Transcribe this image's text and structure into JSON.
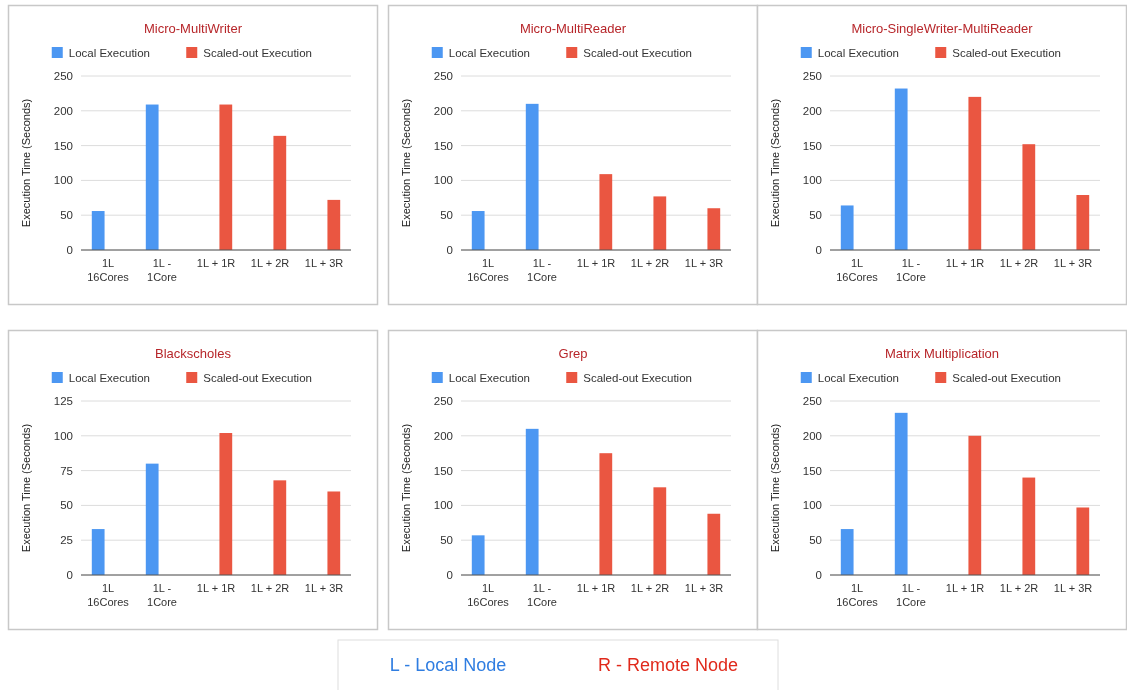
{
  "chart_data": [
    {
      "type": "bar",
      "title": "Micro-MultiWriter",
      "ylabel": "Execution Time (Seconds)",
      "categories": [
        "1L\n16Cores",
        "1L -\n1Core",
        "1L + 1R",
        "1L + 2R",
        "1L + 3R"
      ],
      "ylim": [
        0,
        250
      ],
      "yticks": [
        0,
        50,
        100,
        150,
        200,
        250
      ],
      "grid": "y",
      "legend": "top",
      "series": [
        {
          "name": "Local Execution",
          "color": "#4c97f2",
          "values": [
            56,
            209,
            null,
            null,
            null
          ]
        },
        {
          "name": "Scaled-out Execution",
          "color": "#ea5641",
          "values": [
            null,
            null,
            209,
            164,
            72
          ]
        }
      ]
    },
    {
      "type": "bar",
      "title": "Micro-MultiReader",
      "ylabel": "Execution Time (Seconds)",
      "categories": [
        "1L\n16Cores",
        "1L -\n1Core",
        "1L + 1R",
        "1L + 2R",
        "1L + 3R"
      ],
      "ylim": [
        0,
        250
      ],
      "yticks": [
        0,
        50,
        100,
        150,
        200,
        250
      ],
      "grid": "y",
      "legend": "top",
      "series": [
        {
          "name": "Local Execution",
          "color": "#4c97f2",
          "values": [
            56,
            210,
            null,
            null,
            null
          ]
        },
        {
          "name": "Scaled-out Execution",
          "color": "#ea5641",
          "values": [
            null,
            null,
            109,
            77,
            60
          ]
        }
      ]
    },
    {
      "type": "bar",
      "title": "Micro-SingleWriter-MultiReader",
      "ylabel": "Execution Time (Seconds)",
      "categories": [
        "1L\n16Cores",
        "1L -\n1Core",
        "1L + 1R",
        "1L + 2R",
        "1L + 3R"
      ],
      "ylim": [
        0,
        250
      ],
      "yticks": [
        0,
        50,
        100,
        150,
        200,
        250
      ],
      "grid": "y",
      "legend": "top",
      "series": [
        {
          "name": "Local Execution",
          "color": "#4c97f2",
          "values": [
            64,
            232,
            null,
            null,
            null
          ]
        },
        {
          "name": "Scaled-out Execution",
          "color": "#ea5641",
          "values": [
            null,
            null,
            220,
            152,
            79
          ]
        }
      ]
    },
    {
      "type": "bar",
      "title": "Blackscholes",
      "ylabel": "Execution Time (Seconds)",
      "categories": [
        "1L\n16Cores",
        "1L -\n1Core",
        "1L + 1R",
        "1L + 2R",
        "1L + 3R"
      ],
      "ylim": [
        0,
        125
      ],
      "yticks": [
        0,
        25,
        50,
        75,
        100,
        125
      ],
      "grid": "y",
      "legend": "top",
      "series": [
        {
          "name": "Local Execution",
          "color": "#4c97f2",
          "values": [
            33,
            80,
            null,
            null,
            null
          ]
        },
        {
          "name": "Scaled-out Execution",
          "color": "#ea5641",
          "values": [
            null,
            null,
            102,
            68,
            60
          ]
        }
      ]
    },
    {
      "type": "bar",
      "title": "Grep",
      "ylabel": "Execution Time (Seconds)",
      "categories": [
        "1L\n16Cores",
        "1L -\n1Core",
        "1L + 1R",
        "1L + 2R",
        "1L + 3R"
      ],
      "ylim": [
        0,
        250
      ],
      "yticks": [
        0,
        50,
        100,
        150,
        200,
        250
      ],
      "grid": "y",
      "legend": "top",
      "series": [
        {
          "name": "Local Execution",
          "color": "#4c97f2",
          "values": [
            57,
            210,
            null,
            null,
            null
          ]
        },
        {
          "name": "Scaled-out Execution",
          "color": "#ea5641",
          "values": [
            null,
            null,
            175,
            126,
            88
          ]
        }
      ]
    },
    {
      "type": "bar",
      "title": "Matrix Multiplication",
      "ylabel": "Execution Time (Seconds)",
      "categories": [
        "1L\n16Cores",
        "1L -\n1Core",
        "1L + 1R",
        "1L + 2R",
        "1L + 3R"
      ],
      "ylim": [
        0,
        250
      ],
      "yticks": [
        0,
        50,
        100,
        150,
        200,
        250
      ],
      "grid": "y",
      "legend": "top",
      "series": [
        {
          "name": "Local Execution",
          "color": "#4c97f2",
          "values": [
            66,
            233,
            null,
            null,
            null
          ]
        },
        {
          "name": "Scaled-out Execution",
          "color": "#ea5641",
          "values": [
            null,
            null,
            200,
            140,
            97
          ]
        }
      ]
    },
    {
      "type": "other",
      "annotations": [
        "L - Local Node",
        "R - Remote Node"
      ]
    }
  ]
}
